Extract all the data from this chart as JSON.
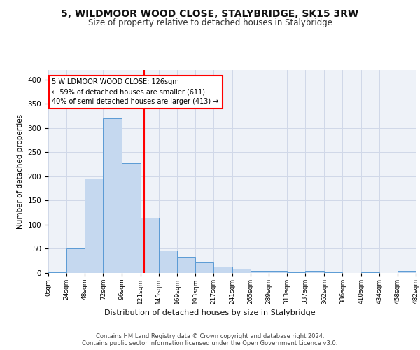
{
  "title": "5, WILDMOOR WOOD CLOSE, STALYBRIDGE, SK15 3RW",
  "subtitle": "Size of property relative to detached houses in Stalybridge",
  "xlabel": "Distribution of detached houses by size in Stalybridge",
  "ylabel": "Number of detached properties",
  "bin_edges": [
    0,
    24,
    48,
    72,
    96,
    121,
    145,
    169,
    193,
    217,
    241,
    265,
    289,
    313,
    337,
    362,
    386,
    410,
    434,
    458,
    482
  ],
  "bar_heights": [
    2,
    51,
    195,
    320,
    227,
    114,
    46,
    34,
    22,
    13,
    8,
    5,
    4,
    2,
    4,
    1,
    0,
    1,
    0,
    5
  ],
  "bar_color": "#c5d8ef",
  "bar_edge_color": "#5b9bd5",
  "grid_color": "#d0d8e8",
  "background_color": "#eef2f8",
  "vline_x": 126,
  "vline_color": "red",
  "annotation_text": "5 WILDMOOR WOOD CLOSE: 126sqm\n← 59% of detached houses are smaller (611)\n40% of semi-detached houses are larger (413) →",
  "annotation_box_color": "white",
  "annotation_box_edge": "red",
  "ylim": [
    0,
    420
  ],
  "yticks": [
    0,
    50,
    100,
    150,
    200,
    250,
    300,
    350,
    400
  ],
  "footer_line1": "Contains HM Land Registry data © Crown copyright and database right 2024.",
  "footer_line2": "Contains public sector information licensed under the Open Government Licence v3.0.",
  "tick_labels": [
    "0sqm",
    "24sqm",
    "48sqm",
    "72sqm",
    "96sqm",
    "121sqm",
    "145sqm",
    "169sqm",
    "193sqm",
    "217sqm",
    "241sqm",
    "265sqm",
    "289sqm",
    "313sqm",
    "337sqm",
    "362sqm",
    "386sqm",
    "410sqm",
    "434sqm",
    "458sqm",
    "482sqm"
  ]
}
